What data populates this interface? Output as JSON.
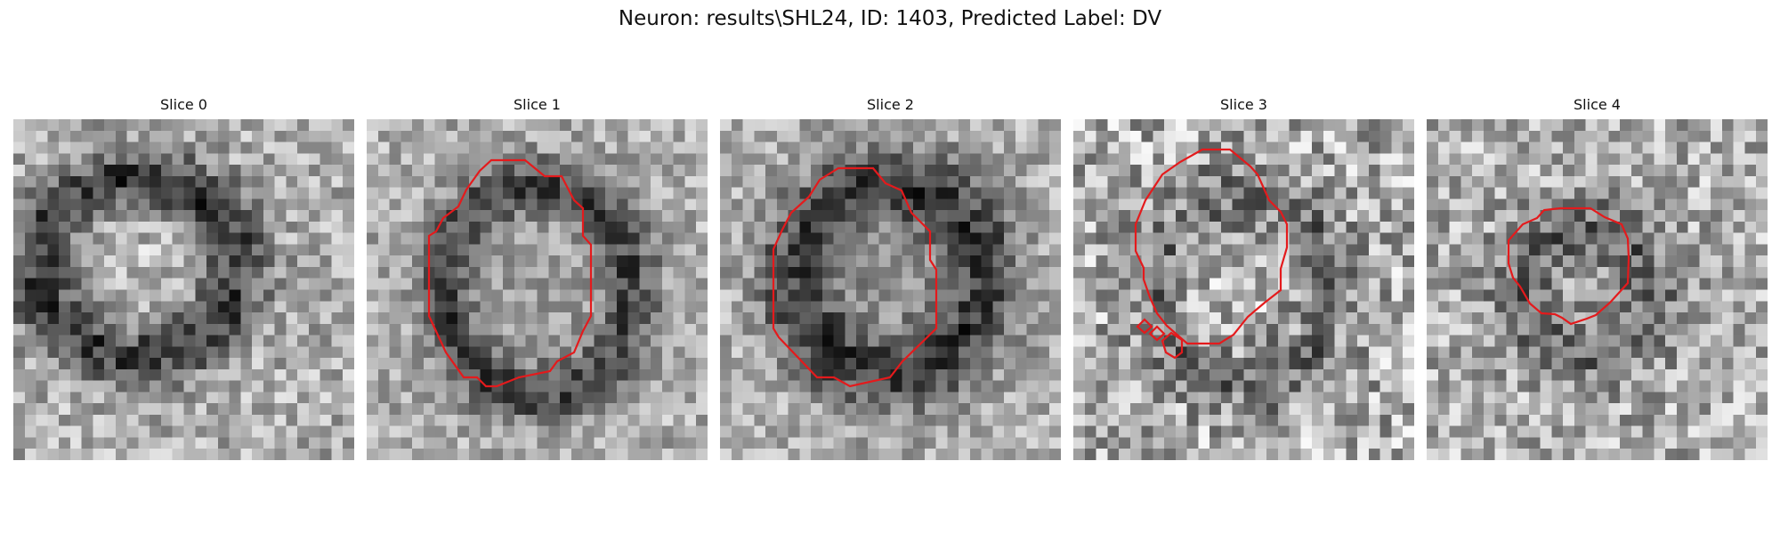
{
  "figure": {
    "title": "Neuron: results\\SHL24, ID: 1403, Predicted Label: DV",
    "outline_color": "#e41a1c"
  },
  "panels": [
    {
      "title": "Slice 0"
    },
    {
      "title": "Slice 1"
    },
    {
      "title": "Slice 2"
    },
    {
      "title": "Slice 3"
    },
    {
      "title": "Slice 4"
    }
  ]
}
